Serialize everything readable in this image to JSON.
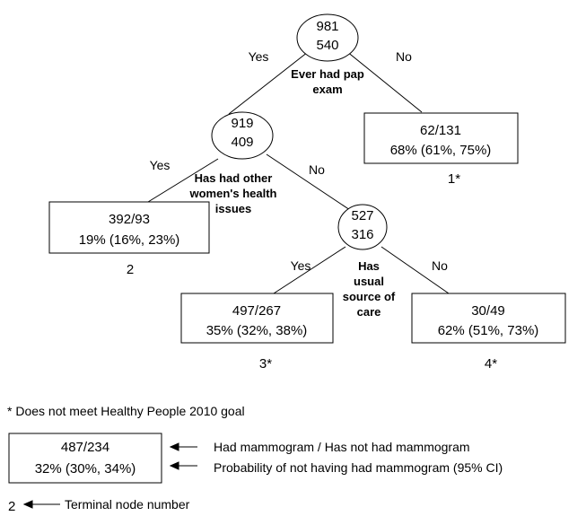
{
  "root": {
    "count_top": "981",
    "count_bottom": "540",
    "split_label": [
      "Ever had pap",
      "exam"
    ]
  },
  "root_edges": {
    "yes": "Yes",
    "no": "No"
  },
  "node_left": {
    "count_top": "919",
    "count_bottom": "409",
    "split_label": [
      "Has had other",
      "women's health",
      "issues"
    ]
  },
  "node_left_edges": {
    "yes": "Yes",
    "no": "No"
  },
  "node_inner": {
    "count_top": "527",
    "count_bottom": "316",
    "split_label": [
      "Has",
      "usual",
      "source of",
      "care"
    ]
  },
  "node_inner_edges": {
    "yes": "Yes",
    "no": "No"
  },
  "terminals": [
    {
      "ratio": "62/131",
      "prob": "68% (61%, 75%)",
      "node": "1*"
    },
    {
      "ratio": "392/93",
      "prob": "19% (16%, 23%)",
      "node": "2"
    },
    {
      "ratio": "497/267",
      "prob": "35% (32%, 38%)",
      "node": "3*"
    },
    {
      "ratio": "30/49",
      "prob": "62% (51%, 73%)",
      "node": "4*"
    }
  ],
  "footnote": "* Does not meet Healthy People 2010 goal",
  "legend": {
    "ratio": "487/234",
    "prob": "32% (30%, 34%)",
    "ratio_desc": "Had mammogram / Has not had mammogram",
    "prob_desc": "Probability of not having had mammogram (95% CI)",
    "node_example": "2",
    "node_desc": "Terminal node number"
  }
}
